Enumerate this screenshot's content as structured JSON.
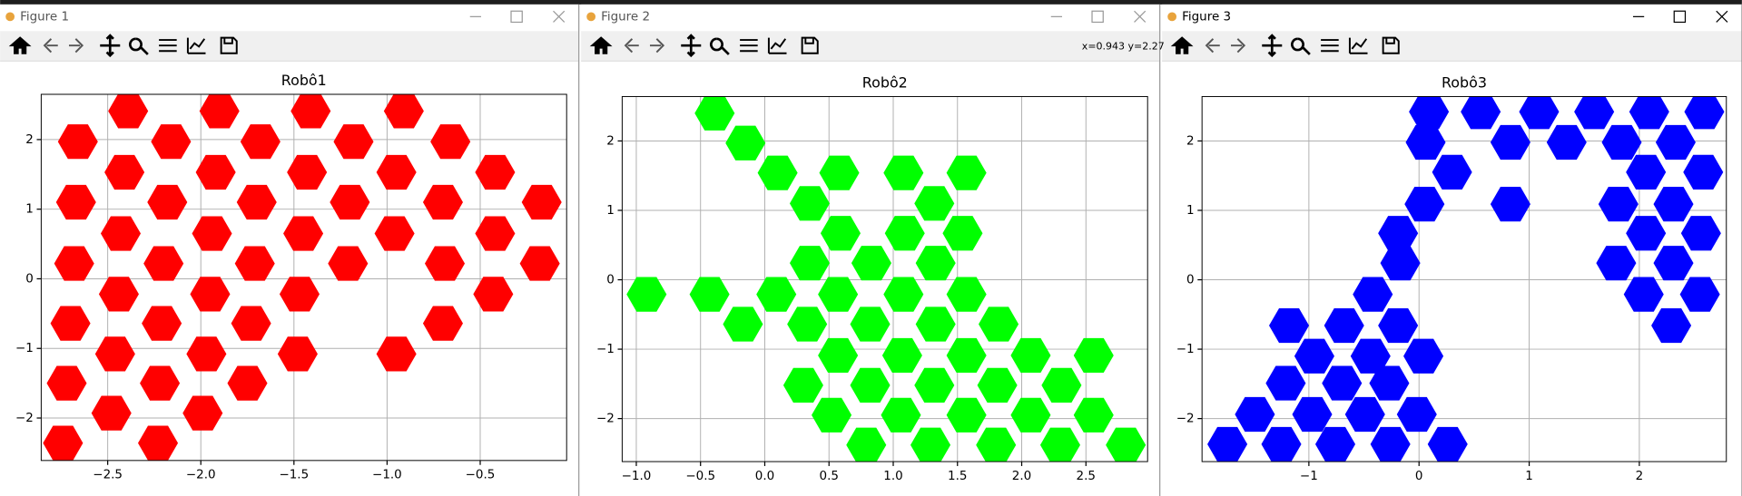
{
  "windows": [
    {
      "title": "Figure 1"
    },
    {
      "title": "Figure 2"
    },
    {
      "title": "Figure 3"
    }
  ],
  "status": "x=0.943 y=2.27",
  "chart_data": [
    {
      "type": "scatter",
      "title": "Robô1",
      "color": "#ff0000",
      "marker": "hexagon",
      "grid": true,
      "x": [
        -2.39,
        -1.9,
        -1.41,
        -0.91,
        -2.66,
        -2.16,
        -1.68,
        -1.18,
        -0.66,
        -2.41,
        -1.92,
        -1.43,
        -0.95,
        -0.42,
        -2.67,
        -2.18,
        -1.7,
        -1.2,
        -0.7,
        -0.17,
        -2.43,
        -1.94,
        -1.45,
        -0.96,
        -0.42,
        -2.68,
        -2.2,
        -1.71,
        -1.21,
        -0.69,
        -0.18,
        -2.44,
        -1.95,
        -1.47,
        -0.43,
        -2.7,
        -2.21,
        -1.73,
        -0.7,
        -2.46,
        -1.97,
        -1.48,
        -0.95,
        -2.72,
        -2.22,
        -1.75,
        -2.48,
        -1.99,
        -2.74,
        -2.23
      ],
      "y": [
        2.41,
        2.41,
        2.41,
        2.41,
        1.97,
        1.97,
        1.97,
        1.97,
        1.97,
        1.53,
        1.53,
        1.53,
        1.53,
        1.53,
        1.1,
        1.1,
        1.1,
        1.1,
        1.1,
        1.1,
        0.65,
        0.65,
        0.65,
        0.65,
        0.65,
        0.22,
        0.22,
        0.22,
        0.22,
        0.22,
        0.22,
        -0.22,
        -0.22,
        -0.22,
        -0.22,
        -0.64,
        -0.64,
        -0.64,
        -0.64,
        -1.08,
        -1.08,
        -1.08,
        -1.08,
        -1.5,
        -1.5,
        -1.5,
        -1.93,
        -1.93,
        -2.36,
        -2.36
      ],
      "xlim": [
        -2.857,
        -0.036
      ],
      "ylim": [
        -2.61,
        2.65
      ],
      "xticks": [
        {
          "value": -2.5,
          "label": "−2.5"
        },
        {
          "value": -2.0,
          "label": "−2.0"
        },
        {
          "value": -1.5,
          "label": "−1.5"
        },
        {
          "value": -1.0,
          "label": "−1.0"
        },
        {
          "value": -0.5,
          "label": "−0.5"
        }
      ],
      "yticks": [
        {
          "value": -2,
          "label": "−2"
        },
        {
          "value": -1,
          "label": "−1"
        },
        0,
        1,
        2
      ]
    },
    {
      "type": "scatter",
      "title": "Robô2",
      "color": "#00ff00",
      "marker": "hexagon",
      "grid": true,
      "x": [
        -0.39,
        -0.15,
        0.1,
        0.58,
        1.08,
        1.57,
        0.35,
        1.32,
        0.59,
        1.09,
        1.54,
        0.35,
        0.83,
        1.33,
        -0.92,
        -0.43,
        0.09,
        0.57,
        1.08,
        1.57,
        -0.17,
        0.33,
        0.82,
        1.33,
        1.82,
        0.57,
        1.07,
        1.57,
        2.07,
        2.56,
        0.3,
        0.82,
        1.32,
        1.81,
        2.31,
        0.52,
        1.06,
        1.57,
        2.07,
        2.56,
        0.79,
        1.29,
        1.8,
        2.3,
        2.81
      ],
      "y": [
        2.4,
        1.97,
        1.54,
        1.54,
        1.54,
        1.54,
        1.1,
        1.1,
        0.67,
        0.67,
        0.67,
        0.24,
        0.24,
        0.24,
        -0.21,
        -0.21,
        -0.21,
        -0.21,
        -0.21,
        -0.21,
        -0.64,
        -0.64,
        -0.64,
        -0.64,
        -0.64,
        -1.09,
        -1.09,
        -1.09,
        -1.09,
        -1.09,
        -1.52,
        -1.52,
        -1.52,
        -1.52,
        -1.52,
        -1.95,
        -1.95,
        -1.95,
        -1.95,
        -1.95,
        -2.38,
        -2.38,
        -2.38,
        -2.38,
        -2.38
      ],
      "xlim": [
        -1.11,
        2.98
      ],
      "ylim": [
        -2.62,
        2.64
      ],
      "xticks": [
        {
          "value": -1.0,
          "label": "−1.0"
        },
        {
          "value": -0.5,
          "label": "−0.5"
        },
        {
          "value": 0,
          "label": "0.0"
        },
        0.5,
        {
          "value": 1,
          "label": "1.0"
        },
        1.5,
        {
          "value": 2,
          "label": "2.0"
        },
        2.5
      ],
      "yticks": [
        {
          "value": -2,
          "label": "−2"
        },
        {
          "value": -1,
          "label": "−1"
        },
        0,
        1,
        2
      ]
    },
    {
      "type": "scatter",
      "title": "Robô3",
      "color": "#0000ff",
      "marker": "hexagon",
      "grid": true,
      "x": [
        0.09,
        0.56,
        1.09,
        1.59,
        2.09,
        2.59,
        0.06,
        0.83,
        1.34,
        1.84,
        2.33,
        0.3,
        2.06,
        2.58,
        0.05,
        0.83,
        1.81,
        2.31,
        -0.19,
        2.06,
        2.56,
        -0.17,
        1.79,
        2.31,
        -0.42,
        2.04,
        2.55,
        -1.18,
        -0.68,
        -0.19,
        2.29,
        -0.95,
        -0.44,
        0.04,
        -1.21,
        -0.7,
        -0.27,
        -1.49,
        -0.97,
        -0.49,
        -0.02,
        -1.74,
        -1.25,
        -0.76,
        -0.26,
        0.26
      ],
      "y": [
        2.42,
        2.42,
        2.42,
        2.42,
        2.42,
        2.42,
        1.98,
        1.98,
        1.98,
        1.98,
        1.98,
        1.55,
        1.55,
        1.55,
        1.09,
        1.09,
        1.09,
        1.09,
        0.67,
        0.67,
        0.67,
        0.24,
        0.24,
        0.24,
        -0.21,
        -0.21,
        -0.21,
        -0.66,
        -0.66,
        -0.66,
        -0.66,
        -1.1,
        -1.1,
        -1.1,
        -1.49,
        -1.49,
        -1.49,
        -1.94,
        -1.94,
        -1.94,
        -1.94,
        -2.37,
        -2.37,
        -2.37,
        -2.37,
        -2.37
      ],
      "xlim": [
        -1.97,
        2.79
      ],
      "ylim": [
        -2.62,
        2.64
      ],
      "xticks": [
        {
          "value": -1,
          "label": "−1"
        },
        0,
        1,
        2
      ],
      "yticks": [
        {
          "value": -2,
          "label": "−2"
        },
        {
          "value": -1,
          "label": "−1"
        },
        0,
        1,
        2
      ]
    }
  ]
}
